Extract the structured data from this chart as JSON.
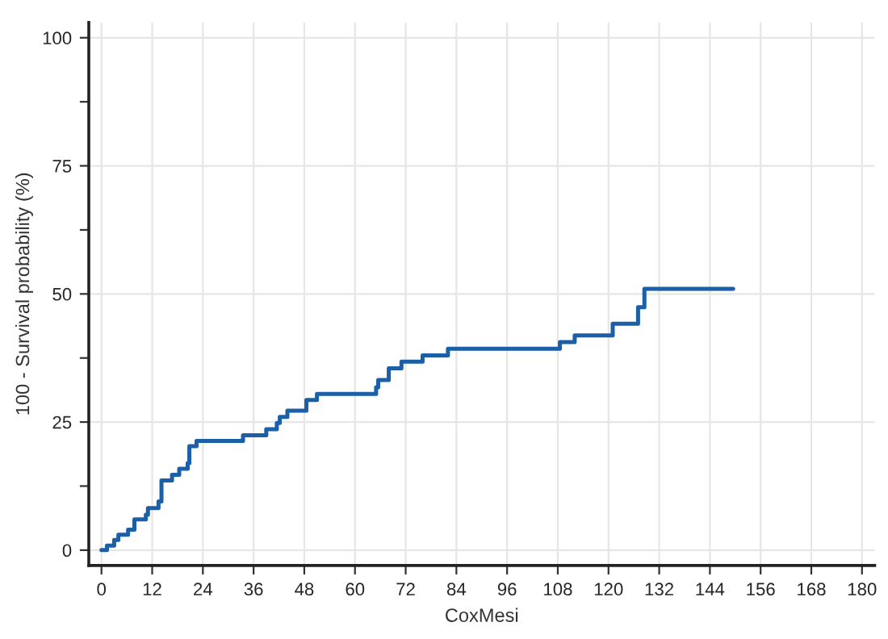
{
  "chart_data": {
    "type": "step",
    "xlabel": "CoxMesi",
    "ylabel": "100 - Survival probability (%)",
    "xlim": [
      -3,
      183
    ],
    "ylim": [
      -3,
      103
    ],
    "xticks": [
      0,
      12,
      24,
      36,
      48,
      60,
      72,
      84,
      96,
      108,
      120,
      132,
      144,
      156,
      168,
      180
    ],
    "yticks": [
      0,
      {
        "value": 12.5,
        "label": null
      },
      25,
      {
        "value": 37.5,
        "label": null
      },
      50,
      {
        "value": 62.5,
        "label": null
      },
      75,
      {
        "value": 87.5,
        "label": null
      },
      100
    ],
    "grid": true,
    "marker": "none",
    "line_style": "solid",
    "series": [
      {
        "color": "#1a5fa8",
        "x": [
          0,
          1.3,
          3,
          4,
          6.3,
          7.8,
          10.5,
          11,
          13.5,
          14.2,
          16.7,
          18.4,
          20.4,
          20.8,
          22.5,
          33.5,
          39,
          41.5,
          42.2,
          44,
          48.5,
          51,
          65,
          65.5,
          68,
          71,
          76,
          82,
          108.5,
          112,
          121,
          127,
          128.5,
          149.5
        ],
        "values": [
          0,
          0.9,
          2,
          3,
          4,
          6,
          6.9,
          8.2,
          9.5,
          13.6,
          14.7,
          15.9,
          17,
          20.3,
          21.3,
          22.4,
          23.6,
          24.8,
          26,
          27.2,
          29.3,
          30.5,
          31.8,
          33.2,
          35.5,
          36.8,
          38,
          39.3,
          40.6,
          41.9,
          44.2,
          47.4,
          51,
          51
        ]
      }
    ]
  }
}
